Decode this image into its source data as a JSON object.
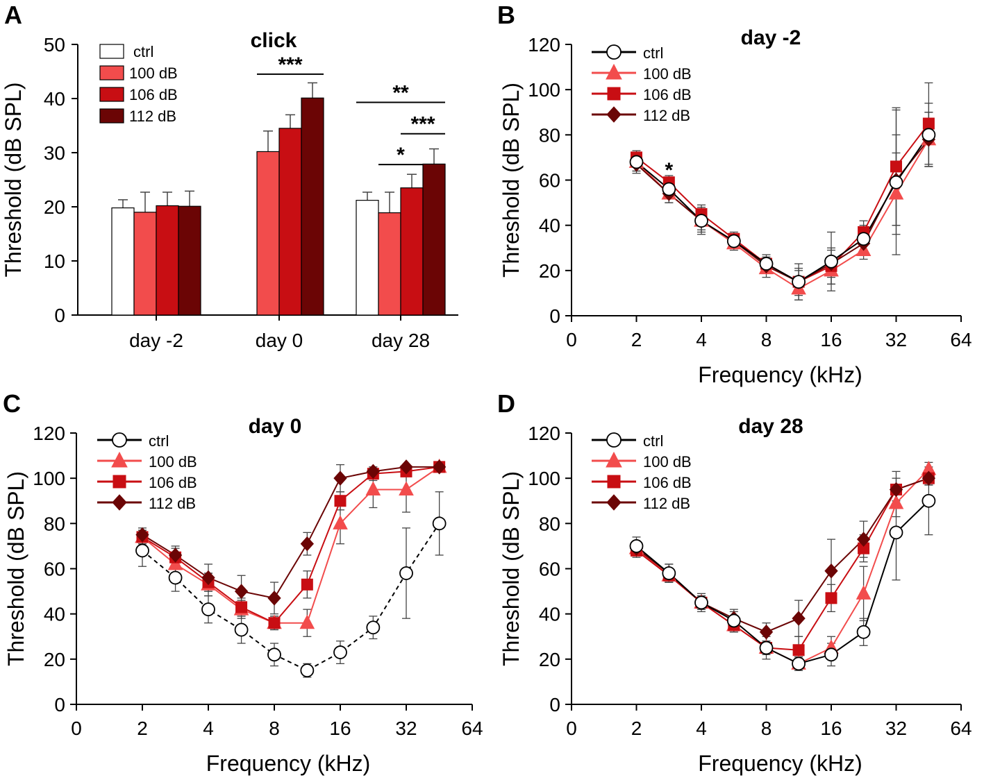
{
  "colors": {
    "ctrl": "#ffffff",
    "100 dB": "#f24c4c",
    "106 dB": "#c80e13",
    "112 dB": "#6b0505",
    "axis": "#000000",
    "err": "#444444"
  },
  "chart_data": [
    {
      "panel": "A",
      "type": "bar",
      "title": "click",
      "xlabel": "",
      "ylabel": "Threshold (dB SPL)",
      "ylim": [
        0,
        50
      ],
      "yticks": [
        "0",
        "10",
        "20",
        "30",
        "40",
        "50"
      ],
      "categories": [
        "day -2",
        "day 0",
        "day 28"
      ],
      "series": [
        {
          "name": "ctrl",
          "values": [
            19.8,
            null,
            21.2
          ],
          "errors": [
            1.5,
            null,
            1.5
          ]
        },
        {
          "name": "100 dB",
          "values": [
            19.0,
            30.2,
            18.9
          ],
          "errors": [
            3.7,
            3.8,
            3.8
          ]
        },
        {
          "name": "106 dB",
          "values": [
            20.2,
            34.5,
            23.5
          ],
          "errors": [
            2.5,
            2.5,
            2.5
          ]
        },
        {
          "name": "112 dB",
          "values": [
            20.1,
            40.1,
            27.9
          ],
          "errors": [
            2.8,
            2.8,
            2.8
          ]
        }
      ],
      "significance": [
        {
          "label": "***",
          "category": 1,
          "from": "100 dB",
          "to": "112 dB",
          "y": 44.5
        },
        {
          "label": "**",
          "category": 2,
          "from": "ctrl",
          "to": "112 dB",
          "y": 39.3
        },
        {
          "label": "***",
          "category": 2,
          "from": "106 dB",
          "to": "112 dB",
          "y": 33.5
        },
        {
          "label": "*",
          "category": 2,
          "from": "100 dB",
          "to": "106 dB",
          "y": 27.8
        }
      ],
      "legend": [
        "ctrl",
        "100 dB",
        "106 dB",
        "112 dB"
      ]
    },
    {
      "panel": "B",
      "type": "line",
      "title": "day -2",
      "xlabel": "Frequency (kHz)",
      "ylabel": "Threshold (dB SPL)",
      "ylim": [
        0,
        120
      ],
      "yticks": [
        "0",
        "20",
        "40",
        "60",
        "80",
        "100",
        "120"
      ],
      "xticks": [
        "0",
        "2",
        "4",
        "8",
        "16",
        "32",
        "64"
      ],
      "x": [
        2,
        2.83,
        4,
        5.66,
        8,
        11.3,
        16,
        22.6,
        32,
        45.3
      ],
      "series": [
        {
          "name": "ctrl",
          "marker": "circle",
          "values": [
            68,
            56,
            42,
            33,
            23,
            15,
            24,
            34,
            59,
            80
          ],
          "errors": [
            4,
            4,
            6,
            3,
            4,
            8,
            13,
            6,
            32,
            14
          ]
        },
        {
          "name": "100 dB",
          "marker": "triangle",
          "values": [
            68,
            54,
            42,
            32,
            21,
            12,
            20,
            29,
            54,
            78
          ],
          "errors": [
            4,
            4,
            5,
            3,
            4,
            5,
            6,
            4,
            18,
            12
          ]
        },
        {
          "name": "106 dB",
          "marker": "square",
          "values": [
            70,
            59,
            45,
            34,
            23,
            15,
            22,
            37,
            66,
            85
          ],
          "errors": [
            3,
            3,
            4,
            3,
            3,
            6,
            8,
            5,
            26,
            18
          ]
        },
        {
          "name": "112 dB",
          "marker": "diamond",
          "values": [
            67,
            54,
            42,
            33,
            22,
            15,
            23,
            32,
            60,
            78
          ],
          "errors": [
            4,
            4,
            4,
            3,
            3,
            5,
            6,
            4,
            20,
            12
          ]
        }
      ],
      "annotations": [
        {
          "text": "*",
          "x": 2.83,
          "y": 65
        }
      ],
      "legend": [
        "ctrl",
        "100 dB",
        "106 dB",
        "112 dB"
      ]
    },
    {
      "panel": "C",
      "type": "line",
      "title": "day 0",
      "xlabel": "Frequency (kHz)",
      "ylabel": "Threshold (dB SPL)",
      "ylim": [
        0,
        120
      ],
      "yticks": [
        "0",
        "20",
        "40",
        "60",
        "80",
        "100",
        "120"
      ],
      "xticks": [
        "0",
        "2",
        "4",
        "8",
        "16",
        "32",
        "64"
      ],
      "x": [
        2,
        2.83,
        4,
        5.66,
        8,
        11.3,
        16,
        22.6,
        32,
        45.3
      ],
      "series": [
        {
          "name": "ctrl",
          "marker": "circle",
          "dashed": true,
          "values": [
            68,
            56,
            42,
            33,
            22,
            15,
            23,
            34,
            58,
            80
          ],
          "errors": [
            7,
            6,
            6,
            6,
            5,
            3,
            5,
            5,
            20,
            14
          ]
        },
        {
          "name": "100 dB",
          "marker": "triangle",
          "values": [
            74,
            62,
            53,
            42,
            36,
            36,
            80,
            95,
            95,
            105
          ],
          "errors": [
            3,
            4,
            5,
            4,
            3,
            6,
            9,
            8,
            10,
            2
          ]
        },
        {
          "name": "106 dB",
          "marker": "square",
          "values": [
            74,
            65,
            54,
            43,
            36,
            53,
            90,
            102,
            103,
            105
          ],
          "errors": [
            3,
            4,
            4,
            4,
            3,
            6,
            4,
            3,
            2,
            2
          ]
        },
        {
          "name": "112 dB",
          "marker": "diamond",
          "values": [
            75,
            66,
            56,
            50,
            47,
            71,
            100,
            103,
            105,
            105
          ],
          "errors": [
            3,
            4,
            6,
            7,
            7,
            5,
            6,
            2,
            1,
            1
          ]
        }
      ],
      "legend": [
        "ctrl",
        "100 dB",
        "106 dB",
        "112 dB"
      ]
    },
    {
      "panel": "D",
      "type": "line",
      "title": "day 28",
      "xlabel": "Frequency (kHz)",
      "ylabel": "Threshold (dB SPL)",
      "ylim": [
        0,
        120
      ],
      "yticks": [
        "0",
        "20",
        "40",
        "60",
        "80",
        "100",
        "120"
      ],
      "xticks": [
        "0",
        "2",
        "4",
        "8",
        "16",
        "32",
        "64"
      ],
      "x": [
        2,
        2.83,
        4,
        5.66,
        8,
        11.3,
        16,
        22.6,
        32,
        45.3
      ],
      "series": [
        {
          "name": "ctrl",
          "marker": "circle",
          "values": [
            70,
            58,
            45,
            37,
            25,
            18,
            22,
            32,
            76,
            90
          ],
          "errors": [
            4,
            4,
            4,
            4,
            5,
            3,
            5,
            6,
            21,
            15
          ]
        },
        {
          "name": "100 dB",
          "marker": "triangle",
          "values": [
            69,
            57,
            45,
            35,
            25,
            18,
            25,
            49,
            89,
            104
          ],
          "errors": [
            3,
            3,
            3,
            3,
            3,
            3,
            5,
            12,
            6,
            3
          ]
        },
        {
          "name": "106 dB",
          "marker": "square",
          "values": [
            68,
            57,
            45,
            35,
            25,
            24,
            47,
            69,
            95,
            100
          ],
          "errors": [
            3,
            3,
            3,
            3,
            3,
            6,
            6,
            6,
            5,
            3
          ]
        },
        {
          "name": "112 dB",
          "marker": "diamond",
          "values": [
            69,
            58,
            45,
            38,
            32,
            38,
            59,
            73,
            95,
            100
          ],
          "errors": [
            3,
            4,
            3,
            4,
            4,
            8,
            14,
            8,
            8,
            3
          ]
        }
      ],
      "legend": [
        "ctrl",
        "100 dB",
        "106 dB",
        "112 dB"
      ]
    }
  ]
}
